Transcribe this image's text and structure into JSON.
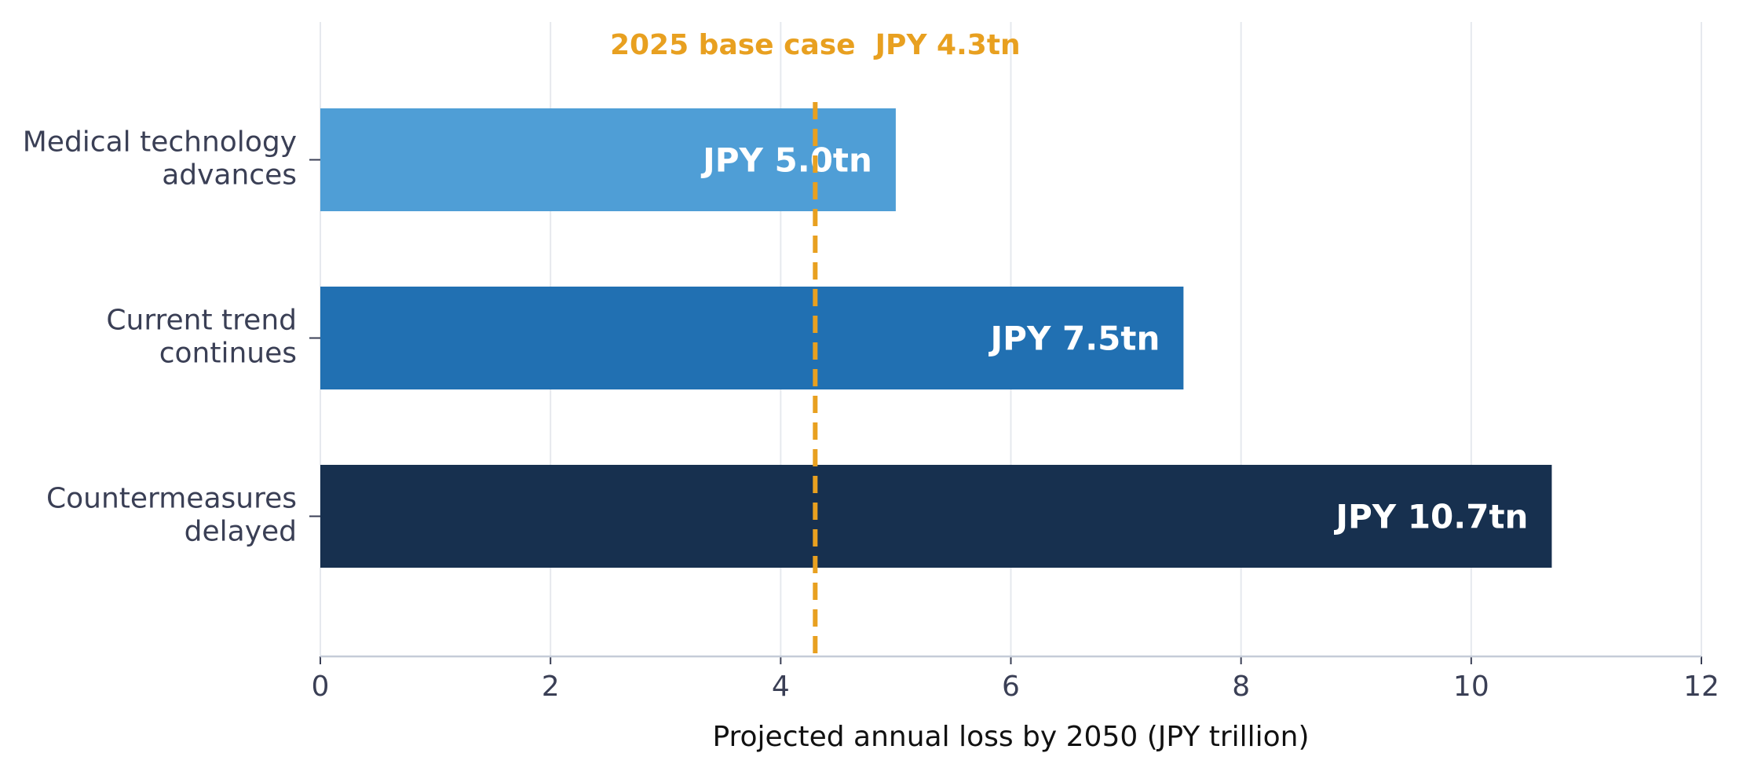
{
  "chart_data": {
    "type": "bar",
    "orientation": "horizontal",
    "categories": [
      [
        "Medical technology",
        "advances"
      ],
      [
        "Current trend",
        "continues"
      ],
      [
        "Countermeasures",
        "delayed"
      ]
    ],
    "values": [
      5.0,
      7.5,
      10.7
    ],
    "value_labels": [
      "JPY 5.0tn",
      "JPY 7.5tn",
      "JPY 10.7tn"
    ],
    "colors": [
      "#4f9ed6",
      "#2170b2",
      "#17304f"
    ],
    "xlabel": "Projected annual loss by 2050 (JPY trillion)",
    "ylabel": "",
    "xlim": [
      0,
      12
    ],
    "xticks": [
      0,
      2,
      4,
      6,
      8,
      10,
      12
    ],
    "grid": true,
    "reference_line": {
      "value": 4.3,
      "label": "2025 base case  JPY 4.3tn",
      "color": "#e8a020",
      "style": "dashed"
    }
  }
}
